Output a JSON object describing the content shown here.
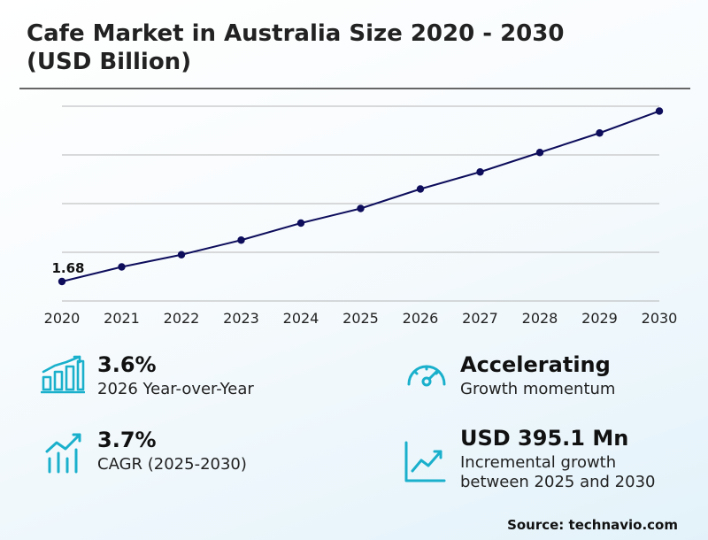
{
  "title": "Cafe Market in Australia Size 2020 - 2030\n(USD Billion)",
  "chart_data": {
    "type": "line",
    "title": "Cafe Market in Australia Size 2020 - 2030 (USD Billion)",
    "x": [
      "2020",
      "2021",
      "2022",
      "2023",
      "2024",
      "2025",
      "2026",
      "2027",
      "2028",
      "2029",
      "2030"
    ],
    "series": [
      {
        "values": [
          1.68,
          1.74,
          1.79,
          1.85,
          1.92,
          1.98,
          2.06,
          2.13,
          2.21,
          2.29,
          2.38
        ]
      }
    ],
    "data_labels": [
      {
        "index": 0,
        "text": "1.68"
      }
    ],
    "ylim": [
      1.6,
      2.4
    ],
    "grid": true,
    "line_color": "#0d0d5c"
  },
  "stats": {
    "yoy": {
      "value": "3.6%",
      "label": "2026 Year-over-Year"
    },
    "momentum": {
      "value": "Accelerating",
      "label": "Growth momentum"
    },
    "cagr": {
      "value": "3.7%",
      "label": "CAGR (2025-2030)"
    },
    "incremental": {
      "value": "USD 395.1 Mn",
      "label": "Incremental growth\nbetween 2025 and 2030"
    }
  },
  "icon_color": "#1ab0cc",
  "source": "Source: technavio.com"
}
